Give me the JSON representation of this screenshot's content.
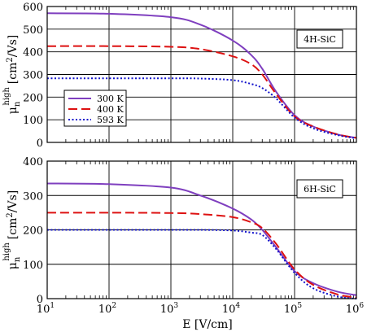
{
  "chart_data": [
    {
      "type": "line",
      "annotation": "4H-SiC",
      "xlabel": "E [V/cm]",
      "ylabel": "μn high [cm2/Vs]",
      "xscale": "log",
      "xlim": [
        10,
        1000000
      ],
      "ylim": [
        0,
        600
      ],
      "yticks": [
        "0",
        "100",
        "200",
        "300",
        "400",
        "500",
        "600"
      ],
      "grid": true,
      "legend": "left-middle",
      "series": [
        {
          "name": "300 K",
          "color": "#7f3fbf",
          "dash": "solid",
          "x": [
            10,
            100,
            1000,
            3000,
            10000,
            20000,
            30000,
            50000,
            100000,
            200000,
            500000,
            1000000
          ],
          "y": [
            570,
            568,
            553,
            520,
            450,
            385,
            325,
            225,
            120,
            70,
            35,
            20
          ]
        },
        {
          "name": "400 K",
          "color": "#dd1111",
          "dash": "long-dash",
          "x": [
            10,
            100,
            1000,
            3000,
            10000,
            20000,
            30000,
            50000,
            100000,
            200000,
            500000,
            1000000
          ],
          "y": [
            425,
            425,
            422,
            412,
            380,
            345,
            300,
            215,
            115,
            70,
            35,
            20
          ]
        },
        {
          "name": "593 K",
          "color": "#1111cc",
          "dash": "dotted",
          "x": [
            10,
            100,
            1000,
            3000,
            10000,
            20000,
            30000,
            50000,
            100000,
            200000,
            500000,
            1000000
          ],
          "y": [
            283,
            283,
            283,
            282,
            275,
            258,
            240,
            195,
            110,
            62,
            32,
            18
          ]
        }
      ]
    },
    {
      "type": "line",
      "annotation": "6H-SiC",
      "xlabel": "E [V/cm]",
      "ylabel": "μn high [cm2/Vs]",
      "xscale": "log",
      "xlim": [
        10,
        1000000
      ],
      "ylim": [
        0,
        400
      ],
      "yticks": [
        "0",
        "100",
        "200",
        "300",
        "400"
      ],
      "xticks": [
        "10^1",
        "10^2",
        "10^3",
        "10^4",
        "10^5",
        "10^6"
      ],
      "grid": true,
      "series": [
        {
          "name": "300 K",
          "color": "#7f3fbf",
          "dash": "solid",
          "x": [
            10,
            100,
            1000,
            3000,
            10000,
            20000,
            30000,
            50000,
            100000,
            200000,
            500000,
            1000000
          ],
          "y": [
            335,
            333,
            323,
            300,
            262,
            230,
            200,
            150,
            80,
            45,
            20,
            10
          ]
        },
        {
          "name": "400 K",
          "color": "#dd1111",
          "dash": "long-dash",
          "x": [
            10,
            100,
            1000,
            3000,
            10000,
            20000,
            30000,
            50000,
            100000,
            200000,
            500000,
            1000000
          ],
          "y": [
            250,
            250,
            249,
            246,
            237,
            222,
            205,
            160,
            85,
            40,
            12,
            3
          ]
        },
        {
          "name": "593 K",
          "color": "#1111cc",
          "dash": "dotted",
          "x": [
            10,
            100,
            1000,
            3000,
            10000,
            20000,
            30000,
            50000,
            100000,
            200000,
            500000,
            1000000
          ],
          "y": [
            200,
            200,
            200,
            200,
            198,
            192,
            185,
            145,
            75,
            30,
            6,
            0
          ]
        }
      ]
    }
  ]
}
